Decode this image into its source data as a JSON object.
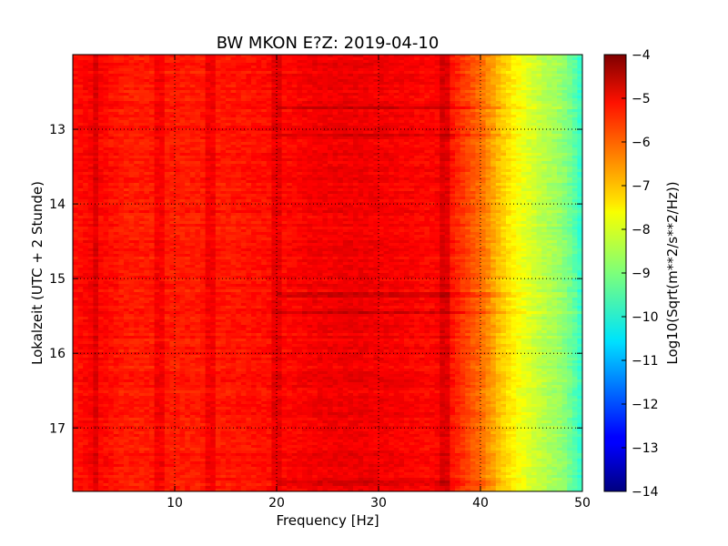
{
  "chart_data": {
    "type": "heatmap",
    "title": "BW MKON E?Z: 2019-04-10",
    "xlabel": "Frequency [Hz]",
    "ylabel": "Lokalzeit (UTC + 2 Stunde)",
    "xlim": [
      0,
      50
    ],
    "ylim": [
      17.85,
      12.0
    ],
    "x_ticks": [
      10,
      20,
      30,
      40,
      50
    ],
    "y_ticks": [
      13,
      14,
      15,
      16,
      17
    ],
    "grid": true,
    "colormap": "jet",
    "colorbar": {
      "label": "Log10(Sqrt(m**2/s**2/Hz))",
      "range": [
        -14,
        -4
      ],
      "ticks": [
        -4,
        -5,
        -6,
        -7,
        -8,
        -9,
        -10,
        -11,
        -12,
        -13,
        -14
      ]
    },
    "spectral_profile": {
      "frequency_hz": [
        0,
        2,
        5,
        8,
        12,
        16,
        20,
        24,
        28,
        32,
        35,
        36.5,
        38,
        40,
        42,
        44,
        46,
        48,
        49.5,
        50
      ],
      "log10_amplitude": [
        -5.4,
        -5.2,
        -5.5,
        -5.5,
        -5.5,
        -5.45,
        -5.35,
        -5.15,
        -5.1,
        -5.2,
        -5.3,
        -5.2,
        -5.7,
        -6.3,
        -7.2,
        -7.9,
        -8.4,
        -8.8,
        -9.5,
        -9.9
      ]
    },
    "spectral_lines_hz": [
      2.3,
      8.6,
      13.5,
      20.0,
      36.5
    ],
    "notable_times": [
      12.7,
      13.05,
      15.2,
      15.45,
      17.72
    ]
  }
}
